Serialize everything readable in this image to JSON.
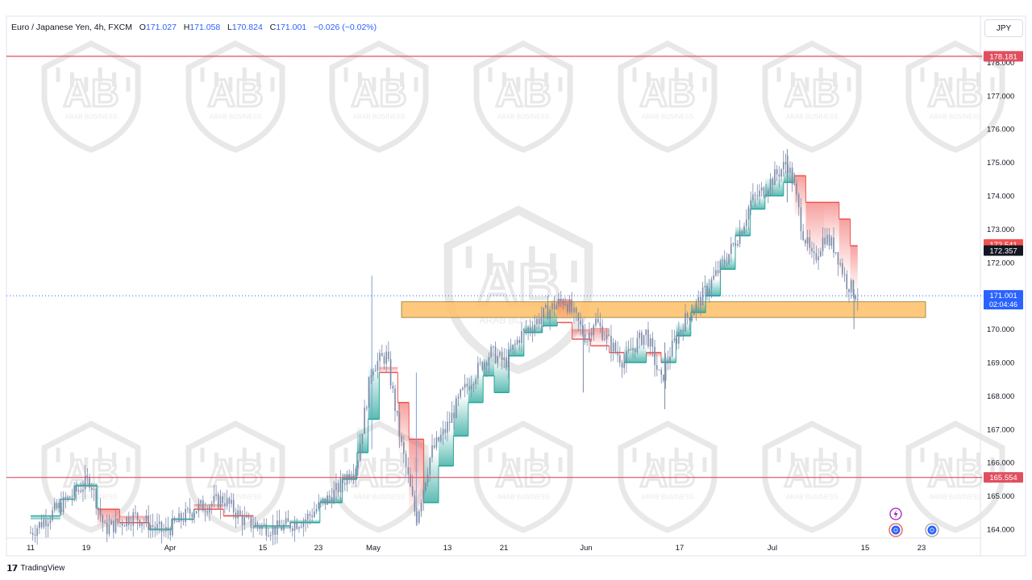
{
  "header": {
    "symbol": "Euro / Japanese Yen, 4h, FXCM",
    "open_label": "O",
    "open": "171.027",
    "high_label": "H",
    "high": "171.058",
    "low_label": "L",
    "low": "170.824",
    "close_label": "C",
    "close": "171.001",
    "change": "−0.026 (−0.02%)"
  },
  "currency_button": "JPY",
  "footer": {
    "brand": "TradingView"
  },
  "watermark_text": "ARAB BUSINESS",
  "colors": {
    "up": "#26a69a",
    "down": "#ef5350",
    "candle": "#7a8aa8",
    "zone": "#ffbf66",
    "resistance": "#e04f5f",
    "price_line": "#2962ff"
  },
  "chart_data": {
    "type": "candlestick",
    "y_range": [
      163.7,
      178.5
    ],
    "y_ticks": [
      "164.000",
      "165.000",
      "166.000",
      "167.000",
      "168.000",
      "169.000",
      "170.000",
      "171.000",
      "172.000",
      "173.000",
      "174.000",
      "175.000",
      "176.000",
      "177.000",
      "178.000"
    ],
    "x_ticks": [
      "11",
      "19",
      "Apr",
      "15",
      "23",
      "May",
      "13",
      "21",
      "Jun",
      "17",
      "Jul",
      "15",
      "23"
    ],
    "horizontal_levels": [
      {
        "price": 178.181,
        "label": "178.181",
        "color": "#e04f5f"
      },
      {
        "price": 165.554,
        "label": "165.554",
        "color": "#e04f5f"
      }
    ],
    "price_badges": [
      {
        "price": 172.541,
        "label": "172.541",
        "bg": "#ef5350"
      },
      {
        "price": 172.357,
        "label": "172.357",
        "bg": "#131722"
      },
      {
        "price": 171.001,
        "label": "171.001",
        "sub": "02:04:46",
        "bg": "#2962ff"
      }
    ],
    "current_price": 171.001,
    "zone": {
      "from": 170.35,
      "to": 170.82,
      "start_tick": "May",
      "end_tick": "23"
    },
    "path": [
      [
        0.0,
        163.9
      ],
      [
        0.08,
        165.5
      ],
      [
        0.1,
        164.0
      ],
      [
        0.14,
        164.4
      ],
      [
        0.18,
        163.9
      ],
      [
        0.22,
        164.6
      ],
      [
        0.26,
        164.9
      ],
      [
        0.29,
        164.2
      ],
      [
        0.33,
        164.0
      ],
      [
        0.37,
        164.3
      ],
      [
        0.41,
        165.1
      ],
      [
        0.44,
        166.0
      ],
      [
        0.46,
        168.9
      ],
      [
        0.48,
        169.2
      ],
      [
        0.5,
        166.5
      ],
      [
        0.52,
        164.3
      ],
      [
        0.54,
        166.3
      ],
      [
        0.56,
        167.0
      ],
      [
        0.58,
        168.0
      ],
      [
        0.6,
        168.7
      ],
      [
        0.62,
        169.3
      ],
      [
        0.64,
        169.0
      ],
      [
        0.66,
        169.8
      ],
      [
        0.68,
        170.2
      ],
      [
        0.7,
        170.6
      ],
      [
        0.72,
        170.9
      ],
      [
        0.74,
        170.1
      ],
      [
        0.75,
        169.7
      ],
      [
        0.76,
        170.3
      ],
      [
        0.78,
        169.6
      ],
      [
        0.8,
        169.0
      ],
      [
        0.81,
        169.4
      ],
      [
        0.83,
        169.9
      ],
      [
        0.85,
        168.4
      ],
      [
        0.86,
        169.2
      ],
      [
        0.88,
        170.2
      ],
      [
        0.9,
        170.8
      ],
      [
        0.92,
        171.5
      ],
      [
        0.94,
        172.2
      ],
      [
        0.96,
        173.1
      ],
      [
        0.97,
        173.8
      ],
      [
        0.985,
        174.1
      ],
      [
        1.0,
        174.5
      ],
      [
        1.02,
        175.0
      ],
      [
        1.03,
        174.2
      ],
      [
        1.04,
        173.0
      ],
      [
        1.055,
        172.0
      ],
      [
        1.07,
        172.8
      ],
      [
        1.085,
        172.4
      ],
      [
        1.1,
        171.4
      ],
      [
        1.115,
        171.0
      ]
    ],
    "path_x_axis": "fraction of chart span from tick '11' to tick 'Jul' (0 = '11', 1 = 'Jul')",
    "stops": [
      [
        0.0,
        164.4,
        "up"
      ],
      [
        0.04,
        164.9,
        "up"
      ],
      [
        0.06,
        165.3,
        "up"
      ],
      [
        0.09,
        164.6,
        "down"
      ],
      [
        0.12,
        164.2,
        "down"
      ],
      [
        0.16,
        164.0,
        "up"
      ],
      [
        0.19,
        164.3,
        "up"
      ],
      [
        0.22,
        164.6,
        "down"
      ],
      [
        0.26,
        164.4,
        "down"
      ],
      [
        0.3,
        164.1,
        "up"
      ],
      [
        0.35,
        164.2,
        "up"
      ],
      [
        0.39,
        164.8,
        "up"
      ],
      [
        0.42,
        165.5,
        "up"
      ],
      [
        0.44,
        166.3,
        "up"
      ],
      [
        0.455,
        167.3,
        "up"
      ],
      [
        0.47,
        168.7,
        "down"
      ],
      [
        0.495,
        167.8,
        "down"
      ],
      [
        0.51,
        166.7,
        "down"
      ],
      [
        0.53,
        164.8,
        "up"
      ],
      [
        0.55,
        165.9,
        "up"
      ],
      [
        0.57,
        166.8,
        "up"
      ],
      [
        0.59,
        167.8,
        "up"
      ],
      [
        0.61,
        168.6,
        "up"
      ],
      [
        0.625,
        168.1,
        "up"
      ],
      [
        0.645,
        169.2,
        "up"
      ],
      [
        0.665,
        169.9,
        "up"
      ],
      [
        0.69,
        170.1,
        "up"
      ],
      [
        0.71,
        170.2,
        "down"
      ],
      [
        0.73,
        169.7,
        "down"
      ],
      [
        0.755,
        169.5,
        "down"
      ],
      [
        0.78,
        169.3,
        "down"
      ],
      [
        0.8,
        169.0,
        "up"
      ],
      [
        0.83,
        169.3,
        "down"
      ],
      [
        0.85,
        169.0,
        "up"
      ],
      [
        0.87,
        169.8,
        "up"
      ],
      [
        0.89,
        170.5,
        "up"
      ],
      [
        0.91,
        171.0,
        "up"
      ],
      [
        0.93,
        171.8,
        "up"
      ],
      [
        0.95,
        172.8,
        "up"
      ],
      [
        0.97,
        173.6,
        "up"
      ],
      [
        0.99,
        174.0,
        "up"
      ],
      [
        1.015,
        174.4,
        "up"
      ],
      [
        1.03,
        174.6,
        "down"
      ],
      [
        1.045,
        173.8,
        "down"
      ],
      [
        1.07,
        173.8,
        "down"
      ],
      [
        1.09,
        173.3,
        "down"
      ],
      [
        1.105,
        172.5,
        "down"
      ]
    ]
  }
}
